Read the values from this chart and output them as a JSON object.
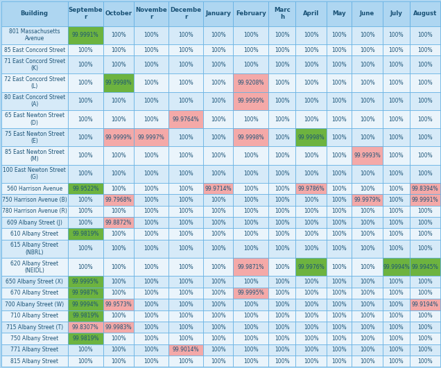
{
  "columns": [
    "Building",
    "Septembe\nr",
    "October",
    "Novembe\nr",
    "Decembe\nr",
    "January",
    "February",
    "Marc\nh",
    "April",
    "May",
    "June",
    "July",
    "August"
  ],
  "rows": [
    {
      "building": "801 Massachusetts\nAvenue",
      "values": [
        "99.9991%",
        "100%",
        "100%",
        "100%",
        "100%",
        "100%",
        "100%",
        "100%",
        "100%",
        "100%",
        "100%",
        "100%"
      ],
      "colors": [
        "#6db33f",
        "",
        "",
        "",
        "",
        "",
        "",
        "",
        "",
        "",
        "",
        ""
      ]
    },
    {
      "building": "85 East Concord Street",
      "values": [
        "100%",
        "100%",
        "100%",
        "100%",
        "100%",
        "100%",
        "100%",
        "100%",
        "100%",
        "100%",
        "100%",
        "100%"
      ],
      "colors": [
        "",
        "",
        "",
        "",
        "",
        "",
        "",
        "",
        "",
        "",
        "",
        ""
      ]
    },
    {
      "building": "71 East Concord Street\n(K)",
      "values": [
        "100%",
        "100%",
        "100%",
        "100%",
        "100%",
        "100%",
        "100%",
        "100%",
        "100%",
        "100%",
        "100%",
        "100%"
      ],
      "colors": [
        "",
        "",
        "",
        "",
        "",
        "",
        "",
        "",
        "",
        "",
        "",
        ""
      ]
    },
    {
      "building": "72 East Concord Street\n(L)",
      "values": [
        "100%",
        "99.9998%",
        "100%",
        "100%",
        "100%",
        "99.9208%",
        "100%",
        "100%",
        "100%",
        "100%",
        "100%",
        "100%"
      ],
      "colors": [
        "",
        "#6db33f",
        "",
        "",
        "",
        "#f4a9a8",
        "",
        "",
        "",
        "",
        "",
        ""
      ]
    },
    {
      "building": "80 East Concord Street\n(A)",
      "values": [
        "100%",
        "100%",
        "100%",
        "100%",
        "100%",
        "99.9999%",
        "100%",
        "100%",
        "100%",
        "100%",
        "100%",
        "100%"
      ],
      "colors": [
        "",
        "",
        "",
        "",
        "",
        "#f4a9a8",
        "",
        "",
        "",
        "",
        "",
        ""
      ]
    },
    {
      "building": "65 East Newton Street\n(D)",
      "values": [
        "100%",
        "100%",
        "100%",
        "99.9764%",
        "100%",
        "100%",
        "100%",
        "100%",
        "100%",
        "100%",
        "100%",
        "100%"
      ],
      "colors": [
        "",
        "",
        "",
        "#f4a9a8",
        "",
        "",
        "",
        "",
        "",
        "",
        "",
        ""
      ]
    },
    {
      "building": "75 East Newton Street\n(E)",
      "values": [
        "100%",
        "99.9999%",
        "99.9997%",
        "100%",
        "100%",
        "99.9998%",
        "100%",
        "99.9998%",
        "100%",
        "100%",
        "100%",
        "100%"
      ],
      "colors": [
        "",
        "#f4a9a8",
        "#f4a9a8",
        "",
        "",
        "#f4a9a8",
        "",
        "#6db33f",
        "",
        "",
        "",
        ""
      ]
    },
    {
      "building": "85 East Newton Street\n(M)",
      "values": [
        "100%",
        "100%",
        "100%",
        "100%",
        "100%",
        "100%",
        "100%",
        "100%",
        "100%",
        "99.9993%",
        "100%",
        "100%"
      ],
      "colors": [
        "",
        "",
        "",
        "",
        "",
        "",
        "",
        "",
        "",
        "#f4a9a8",
        "",
        ""
      ]
    },
    {
      "building": "100 East Newton Street\n(G)",
      "values": [
        "100%",
        "100%",
        "100%",
        "100%",
        "100%",
        "100%",
        "100%",
        "100%",
        "100%",
        "100%",
        "100%",
        "100%"
      ],
      "colors": [
        "",
        "",
        "",
        "",
        "",
        "",
        "",
        "",
        "",
        "",
        "",
        ""
      ]
    },
    {
      "building": "560 Harrison Avenue",
      "values": [
        "99.9522%",
        "100%",
        "100%",
        "100%",
        "99.9714%",
        "100%",
        "100%",
        "99.9786%",
        "100%",
        "100%",
        "100%",
        "99.8394%"
      ],
      "colors": [
        "#6db33f",
        "",
        "",
        "",
        "#f4a9a8",
        "",
        "",
        "#f4a9a8",
        "",
        "",
        "",
        "#f4a9a8"
      ]
    },
    {
      "building": "750 Harrison Avenue (B)",
      "values": [
        "100%",
        "99.7968%",
        "100%",
        "100%",
        "100%",
        "100%",
        "100%",
        "100%",
        "100%",
        "99.9979%",
        "100%",
        "99.9991%"
      ],
      "colors": [
        "",
        "#f4a9a8",
        "",
        "",
        "",
        "",
        "",
        "",
        "",
        "#f4a9a8",
        "",
        "#f4a9a8"
      ]
    },
    {
      "building": "780 Harrison Avenue (R)",
      "values": [
        "100%",
        "100%",
        "100%",
        "100%",
        "100%",
        "100%",
        "100%",
        "100%",
        "100%",
        "100%",
        "100%",
        "100%"
      ],
      "colors": [
        "",
        "",
        "",
        "",
        "",
        "",
        "",
        "",
        "",
        "",
        "",
        ""
      ]
    },
    {
      "building": "609 Albany Street (J)",
      "values": [
        "100%",
        "99.8872%",
        "100%",
        "100%",
        "100%",
        "100%",
        "100%",
        "100%",
        "100%",
        "100%",
        "100%",
        "100%"
      ],
      "colors": [
        "",
        "#f4a9a8",
        "",
        "",
        "",
        "",
        "",
        "",
        "",
        "",
        "",
        ""
      ]
    },
    {
      "building": "610 Albany Street",
      "values": [
        "99.9819%",
        "100%",
        "100%",
        "100%",
        "100%",
        "100%",
        "100%",
        "100%",
        "100%",
        "100%",
        "100%",
        "100%"
      ],
      "colors": [
        "#6db33f",
        "",
        "",
        "",
        "",
        "",
        "",
        "",
        "",
        "",
        "",
        ""
      ]
    },
    {
      "building": "615 Albany Street\n(NBRL)",
      "values": [
        "100%",
        "100%",
        "100%",
        "100%",
        "100%",
        "100%",
        "100%",
        "100%",
        "100%",
        "100%",
        "100%",
        "100%"
      ],
      "colors": [
        "",
        "",
        "",
        "",
        "",
        "",
        "",
        "",
        "",
        "",
        "",
        ""
      ]
    },
    {
      "building": "620 Albany Street\n(NEIDL)",
      "values": [
        "100%",
        "100%",
        "100%",
        "100%",
        "100%",
        "99.9871%",
        "100%",
        "99.9976%",
        "100%",
        "100%",
        "99.9994%",
        "99.9945%"
      ],
      "colors": [
        "",
        "",
        "",
        "",
        "",
        "#f4a9a8",
        "",
        "#6db33f",
        "",
        "",
        "#6db33f",
        "#6db33f"
      ]
    },
    {
      "building": "650 Albany Street (X)",
      "values": [
        "99.9995%",
        "100%",
        "100%",
        "100%",
        "100%",
        "100%",
        "100%",
        "100%",
        "100%",
        "100%",
        "100%",
        "100%"
      ],
      "colors": [
        "#6db33f",
        "",
        "",
        "",
        "",
        "",
        "",
        "",
        "",
        "",
        "",
        ""
      ]
    },
    {
      "building": "670 Albany Street",
      "values": [
        "99.9987%",
        "100%",
        "100%",
        "100%",
        "100%",
        "99.9995%",
        "100%",
        "100%",
        "100%",
        "100%",
        "100%",
        "100%"
      ],
      "colors": [
        "#6db33f",
        "",
        "",
        "",
        "",
        "#f4a9a8",
        "",
        "",
        "",
        "",
        "",
        ""
      ]
    },
    {
      "building": "700 Albany Street (W)",
      "values": [
        "99.9994%",
        "99.9573%",
        "100%",
        "100%",
        "100%",
        "100%",
        "100%",
        "100%",
        "100%",
        "100%",
        "100%",
        "99.9194%"
      ],
      "colors": [
        "#6db33f",
        "#f4a9a8",
        "",
        "",
        "",
        "",
        "",
        "",
        "",
        "",
        "",
        "#f4a9a8"
      ]
    },
    {
      "building": "710 Albany Street",
      "values": [
        "99.9819%",
        "100%",
        "100%",
        "100%",
        "100%",
        "100%",
        "100%",
        "100%",
        "100%",
        "100%",
        "100%",
        "100%"
      ],
      "colors": [
        "#6db33f",
        "",
        "",
        "",
        "",
        "",
        "",
        "",
        "",
        "",
        "",
        ""
      ]
    },
    {
      "building": "715 Albany Street (T)",
      "values": [
        "99.8307%",
        "99.9983%",
        "100%",
        "100%",
        "100%",
        "100%",
        "100%",
        "100%",
        "100%",
        "100%",
        "100%",
        "100%"
      ],
      "colors": [
        "#f4a9a8",
        "#f4a9a8",
        "",
        "",
        "",
        "",
        "",
        "",
        "",
        "",
        "",
        ""
      ]
    },
    {
      "building": "750 Albany Street",
      "values": [
        "99.9819%",
        "100%",
        "100%",
        "100%",
        "100%",
        "100%",
        "100%",
        "100%",
        "100%",
        "100%",
        "100%",
        "100%"
      ],
      "colors": [
        "#6db33f",
        "",
        "",
        "",
        "",
        "",
        "",
        "",
        "",
        "",
        "",
        ""
      ]
    },
    {
      "building": "771 Albany Street",
      "values": [
        "100%",
        "100%",
        "100%",
        "99.9014%",
        "100%",
        "100%",
        "100%",
        "100%",
        "100%",
        "100%",
        "100%",
        "100%"
      ],
      "colors": [
        "",
        "",
        "",
        "#f4a9a8",
        "",
        "",
        "",
        "",
        "",
        "",
        "",
        ""
      ]
    },
    {
      "building": "815 Albany Street",
      "values": [
        "100%",
        "100%",
        "100%",
        "100%",
        "100%",
        "100%",
        "100%",
        "100%",
        "100%",
        "100%",
        "100%",
        "100%"
      ],
      "colors": [
        "",
        "",
        "",
        "",
        "",
        "",
        "",
        "",
        "",
        "",
        "",
        ""
      ]
    }
  ],
  "header_bg": "#aed6f1",
  "row_bg_even": "#d6eaf8",
  "row_bg_odd": "#eaf4fb",
  "border_color": "#5dade2",
  "header_text_color": "#1a5276",
  "cell_text_color": "#1a5276",
  "green_color": "#6db33f",
  "pink_color": "#f4a9a8",
  "fig_bg": "#aed6f1",
  "col_widths_rel": [
    1.55,
    0.82,
    0.72,
    0.8,
    0.8,
    0.7,
    0.82,
    0.63,
    0.72,
    0.58,
    0.72,
    0.63,
    0.7
  ],
  "header_fontsize": 6.2,
  "cell_fontsize": 5.5,
  "border_lw": 0.5
}
